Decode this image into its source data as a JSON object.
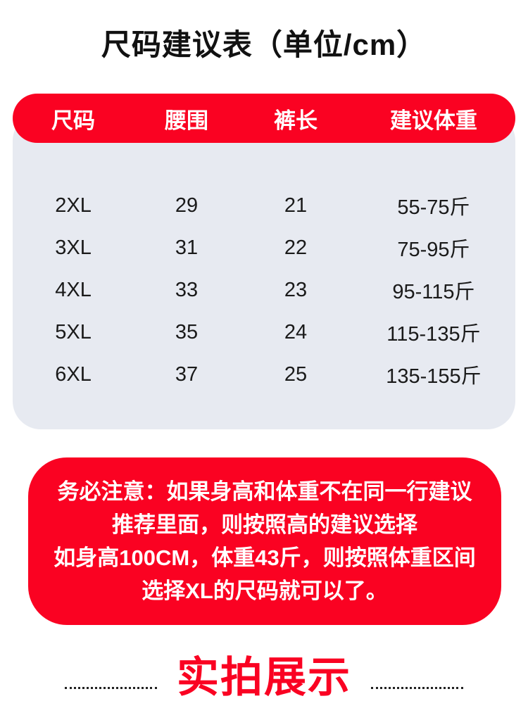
{
  "page": {
    "title": "尺码建议表（单位/cm）"
  },
  "size_table": {
    "headers": [
      "尺码",
      "腰围",
      "裤长",
      "建议体重"
    ],
    "rows": [
      [
        "2XL",
        "29",
        "21",
        "55-75斤"
      ],
      [
        "3XL",
        "31",
        "22",
        "75-95斤"
      ],
      [
        "4XL",
        "33",
        "23",
        "95-115斤"
      ],
      [
        "5XL",
        "35",
        "24",
        "115-135斤"
      ],
      [
        "6XL",
        "37",
        "25",
        "135-155斤"
      ]
    ]
  },
  "notice": {
    "lines": [
      "务必注意：如果身高和体重不在同一行建议",
      "推荐里面，则按照高的建议选择",
      "如身高100CM，体重43斤，则按照体重区间",
      "选择XL的尺码就可以了。"
    ]
  },
  "section": {
    "title": "实拍展示"
  },
  "colors": {
    "accent_red": "#fa0222",
    "table_bg": "#e7eaf1",
    "text_dark": "#1a1a1a"
  }
}
